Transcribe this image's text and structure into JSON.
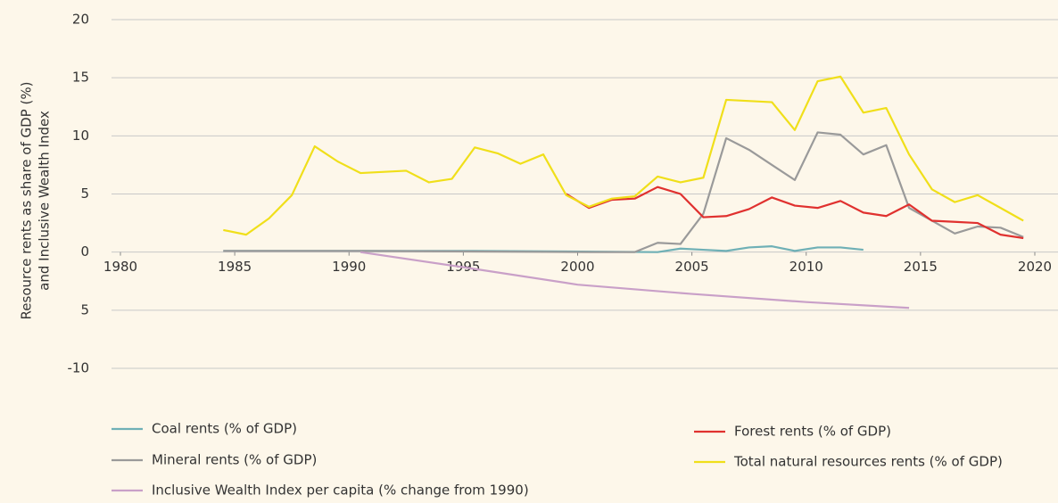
{
  "chart_data": {
    "type": "line",
    "ylabel": [
      "Resource rents as share of GDP (%)",
      "and Inclusive Wealth Index"
    ],
    "xlim": [
      1980,
      2020
    ],
    "xticks": [
      1980,
      1985,
      1990,
      1995,
      2000,
      2005,
      2010,
      2015,
      2020
    ],
    "ylim": [
      -10,
      20
    ],
    "yticks": [
      20,
      15,
      10,
      5,
      0,
      {
        "value": -5,
        "label": "5"
      },
      -10
    ],
    "grid": true,
    "series": [
      {
        "name": "Coal rents (% of GDP)",
        "color": "#6fb0b6",
        "x": [
          1984.5,
          1995.5,
          2003.5,
          2004.5,
          2005.5,
          2006.5,
          2007.5,
          2008.5,
          2009.5,
          2010.5,
          2011.5,
          2012.5
        ],
        "values": [
          0.1,
          0.1,
          0.0,
          0.3,
          0.2,
          0.1,
          0.4,
          0.5,
          0.1,
          0.4,
          0.4,
          0.2
        ]
      },
      {
        "name": "Mineral rents (% of GDP)",
        "color": "#9a9a9a",
        "x": [
          1984.5,
          1990.5,
          2000.5,
          2002.5,
          2003.5,
          2004.5,
          2005.5,
          2006.5,
          2007.5,
          2008.5,
          2009.5,
          2010.5,
          2011.5,
          2012.5,
          2013.5,
          2014.5,
          2015.5,
          2016.5,
          2017.5,
          2018.5,
          2019.5
        ],
        "values": [
          0.1,
          0.1,
          0.0,
          0.0,
          0.8,
          0.7,
          3.3,
          9.8,
          8.8,
          7.5,
          6.2,
          10.3,
          10.1,
          8.4,
          9.2,
          3.8,
          2.7,
          1.6,
          2.2,
          2.1,
          1.3
        ]
      },
      {
        "name": "Inclusive Wealth Index per capita (% change from 1990)",
        "color": "#c9a0c8",
        "x": [
          1990.5,
          1995,
          2000,
          2005,
          2010,
          2014.5
        ],
        "values": [
          0,
          -1.3,
          -2.8,
          -3.6,
          -4.3,
          -4.8
        ]
      },
      {
        "name": "Forest rents (% of GDP)",
        "color": "#e0312f",
        "x": [
          1999.5,
          2000.5,
          2001.5,
          2002.5,
          2003.5,
          2004.5,
          2005.5,
          2006.5,
          2007.5,
          2008.5,
          2009.5,
          2010.5,
          2011.5,
          2012.5,
          2013.5,
          2014.5,
          2015.5,
          2016.5,
          2017.5,
          2018.5,
          2019.5
        ],
        "values": [
          5.0,
          3.8,
          4.5,
          4.6,
          5.6,
          5.0,
          3.0,
          3.1,
          3.7,
          4.7,
          4.0,
          3.8,
          4.4,
          3.4,
          3.1,
          4.1,
          2.7,
          2.6,
          2.5,
          1.5,
          1.2
        ]
      },
      {
        "name": "Total natural resources rents (% of GDP)",
        "color": "#f0df1a",
        "x": [
          1984.5,
          1985.5,
          1986.5,
          1987.5,
          1988.5,
          1989.5,
          1990.5,
          1992.5,
          1993.5,
          1994.5,
          1995.5,
          1996.5,
          1997.5,
          1998.5,
          1999.5,
          2000.5,
          2001.5,
          2002.5,
          2003.5,
          2004.5,
          2005.5,
          2006.5,
          2008.5,
          2009.5,
          2010.5,
          2011.5,
          2012.5,
          2013.5,
          2014.5,
          2015.5,
          2016.5,
          2017.5,
          2018.5,
          2019.5
        ],
        "values": [
          1.9,
          1.5,
          2.9,
          4.9,
          9.1,
          7.8,
          6.8,
          7.0,
          6.0,
          6.3,
          9.0,
          8.5,
          7.6,
          8.4,
          4.9,
          3.9,
          4.6,
          4.8,
          6.5,
          6.0,
          6.4,
          13.1,
          12.9,
          10.5,
          14.7,
          15.1,
          12.0,
          12.4,
          8.4,
          5.4,
          4.3,
          4.9,
          3.8,
          2.7
        ]
      }
    ]
  }
}
